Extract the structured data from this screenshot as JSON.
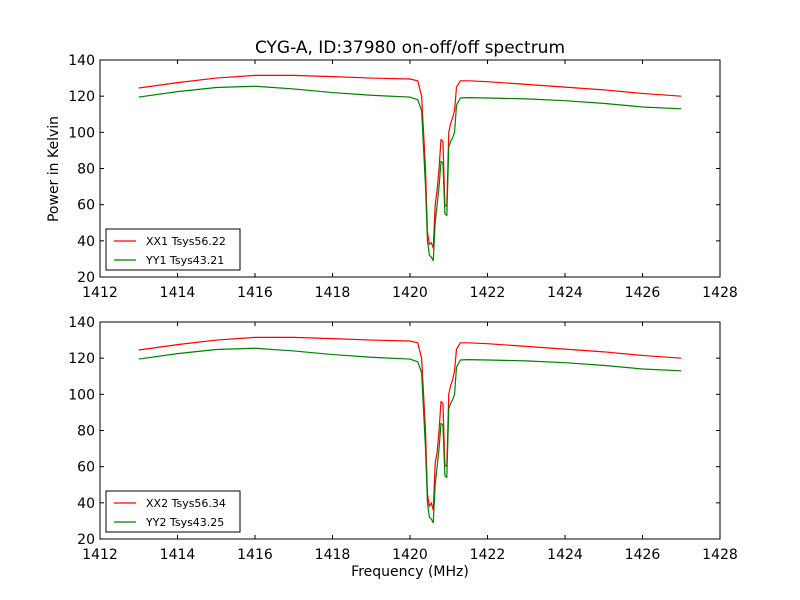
{
  "figure": {
    "title": "CYG-A, ID:37980 on-off/off spectrum",
    "xlabel": "Frequency (MHz)",
    "ylabel": "Power in Kelvin"
  },
  "chart_data": [
    {
      "type": "line",
      "title": "CYG-A, ID:37980 on-off/off spectrum",
      "xlabel": "",
      "ylabel": "Power in Kelvin",
      "xlim": [
        1412,
        1428
      ],
      "ylim": [
        20,
        140
      ],
      "xticks": [
        1412,
        1414,
        1416,
        1418,
        1420,
        1422,
        1424,
        1426,
        1428
      ],
      "yticks": [
        20,
        40,
        60,
        80,
        100,
        120,
        140
      ],
      "grid": false,
      "legend": "lower-left",
      "series": [
        {
          "name": "XX1 Tsys56.22",
          "color": "#ff0000",
          "points": [
            [
              1413.0,
              124.5
            ],
            [
              1414.0,
              127.5
            ],
            [
              1415.0,
              130.0
            ],
            [
              1416.0,
              131.5
            ],
            [
              1417.0,
              131.5
            ],
            [
              1418.0,
              130.8
            ],
            [
              1419.0,
              130.0
            ],
            [
              1420.0,
              129.5
            ],
            [
              1420.2,
              128.5
            ],
            [
              1420.3,
              120.0
            ],
            [
              1420.4,
              80.0
            ],
            [
              1420.45,
              45.0
            ],
            [
              1420.5,
              38.0
            ],
            [
              1420.55,
              39.0
            ],
            [
              1420.6,
              36.0
            ],
            [
              1420.65,
              60.0
            ],
            [
              1420.7,
              68.0
            ],
            [
              1420.75,
              80.0
            ],
            [
              1420.8,
              96.0
            ],
            [
              1420.85,
              95.0
            ],
            [
              1420.9,
              60.0
            ],
            [
              1420.95,
              59.0
            ],
            [
              1421.0,
              100.0
            ],
            [
              1421.05,
              105.0
            ],
            [
              1421.1,
              108.0
            ],
            [
              1421.15,
              112.0
            ],
            [
              1421.2,
              125.0
            ],
            [
              1421.3,
              128.5
            ],
            [
              1421.5,
              128.5
            ],
            [
              1422.0,
              128.0
            ],
            [
              1423.0,
              126.5
            ],
            [
              1424.0,
              125.0
            ],
            [
              1425.0,
              123.5
            ],
            [
              1426.0,
              121.5
            ],
            [
              1427.0,
              120.0
            ]
          ]
        },
        {
          "name": "YY1 Tsys43.21",
          "color": "#008000",
          "points": [
            [
              1413.0,
              119.5
            ],
            [
              1414.0,
              122.5
            ],
            [
              1415.0,
              124.8
            ],
            [
              1416.0,
              125.5
            ],
            [
              1417.0,
              124.0
            ],
            [
              1418.0,
              122.0
            ],
            [
              1419.0,
              120.5
            ],
            [
              1420.0,
              119.5
            ],
            [
              1420.2,
              118.0
            ],
            [
              1420.3,
              112.0
            ],
            [
              1420.4,
              70.0
            ],
            [
              1420.45,
              40.0
            ],
            [
              1420.5,
              32.0
            ],
            [
              1420.55,
              31.0
            ],
            [
              1420.6,
              29.0
            ],
            [
              1420.65,
              50.0
            ],
            [
              1420.7,
              60.0
            ],
            [
              1420.75,
              70.0
            ],
            [
              1420.8,
              84.0
            ],
            [
              1420.85,
              83.0
            ],
            [
              1420.9,
              55.0
            ],
            [
              1420.95,
              54.0
            ],
            [
              1421.0,
              92.0
            ],
            [
              1421.05,
              95.0
            ],
            [
              1421.1,
              97.0
            ],
            [
              1421.15,
              100.0
            ],
            [
              1421.2,
              115.0
            ],
            [
              1421.3,
              119.0
            ],
            [
              1421.5,
              119.2
            ],
            [
              1422.0,
              119.0
            ],
            [
              1423.0,
              118.5
            ],
            [
              1424.0,
              117.5
            ],
            [
              1425.0,
              116.0
            ],
            [
              1426.0,
              114.0
            ],
            [
              1427.0,
              113.0
            ]
          ]
        }
      ]
    },
    {
      "type": "line",
      "title": "",
      "xlabel": "Frequency (MHz)",
      "ylabel": "",
      "xlim": [
        1412,
        1428
      ],
      "ylim": [
        20,
        140
      ],
      "xticks": [
        1412,
        1414,
        1416,
        1418,
        1420,
        1422,
        1424,
        1426,
        1428
      ],
      "yticks": [
        20,
        40,
        60,
        80,
        100,
        120,
        140
      ],
      "grid": false,
      "legend": "lower-left",
      "series": [
        {
          "name": "XX2 Tsys56.34",
          "color": "#ff0000",
          "points": [
            [
              1413.0,
              124.5
            ],
            [
              1414.0,
              127.5
            ],
            [
              1415.0,
              130.0
            ],
            [
              1416.0,
              131.5
            ],
            [
              1417.0,
              131.5
            ],
            [
              1418.0,
              130.8
            ],
            [
              1419.0,
              130.0
            ],
            [
              1420.0,
              129.5
            ],
            [
              1420.2,
              128.5
            ],
            [
              1420.3,
              120.0
            ],
            [
              1420.4,
              80.0
            ],
            [
              1420.45,
              45.0
            ],
            [
              1420.5,
              38.0
            ],
            [
              1420.55,
              40.0
            ],
            [
              1420.6,
              36.0
            ],
            [
              1420.65,
              62.0
            ],
            [
              1420.7,
              68.0
            ],
            [
              1420.75,
              80.0
            ],
            [
              1420.8,
              96.0
            ],
            [
              1420.85,
              95.0
            ],
            [
              1420.9,
              61.0
            ],
            [
              1420.95,
              60.0
            ],
            [
              1421.0,
              100.0
            ],
            [
              1421.05,
              105.0
            ],
            [
              1421.1,
              108.0
            ],
            [
              1421.15,
              113.0
            ],
            [
              1421.2,
              125.0
            ],
            [
              1421.3,
              128.5
            ],
            [
              1421.5,
              128.5
            ],
            [
              1422.0,
              128.0
            ],
            [
              1423.0,
              126.5
            ],
            [
              1424.0,
              125.0
            ],
            [
              1425.0,
              123.5
            ],
            [
              1426.0,
              121.5
            ],
            [
              1427.0,
              120.0
            ]
          ]
        },
        {
          "name": "YY2 Tsys43.25",
          "color": "#008000",
          "points": [
            [
              1413.0,
              119.5
            ],
            [
              1414.0,
              122.5
            ],
            [
              1415.0,
              124.8
            ],
            [
              1416.0,
              125.5
            ],
            [
              1417.0,
              124.0
            ],
            [
              1418.0,
              122.0
            ],
            [
              1419.0,
              120.5
            ],
            [
              1420.0,
              119.5
            ],
            [
              1420.2,
              118.0
            ],
            [
              1420.3,
              112.0
            ],
            [
              1420.4,
              70.0
            ],
            [
              1420.45,
              40.0
            ],
            [
              1420.5,
              32.0
            ],
            [
              1420.55,
              31.0
            ],
            [
              1420.6,
              29.0
            ],
            [
              1420.65,
              50.0
            ],
            [
              1420.7,
              60.0
            ],
            [
              1420.75,
              70.0
            ],
            [
              1420.8,
              84.0
            ],
            [
              1420.85,
              83.0
            ],
            [
              1420.9,
              55.0
            ],
            [
              1420.95,
              54.0
            ],
            [
              1421.0,
              92.0
            ],
            [
              1421.05,
              95.0
            ],
            [
              1421.1,
              97.0
            ],
            [
              1421.15,
              100.0
            ],
            [
              1421.2,
              115.0
            ],
            [
              1421.3,
              119.0
            ],
            [
              1421.5,
              119.2
            ],
            [
              1422.0,
              119.0
            ],
            [
              1423.0,
              118.5
            ],
            [
              1424.0,
              117.5
            ],
            [
              1425.0,
              116.0
            ],
            [
              1426.0,
              114.0
            ],
            [
              1427.0,
              113.0
            ]
          ]
        }
      ]
    }
  ]
}
